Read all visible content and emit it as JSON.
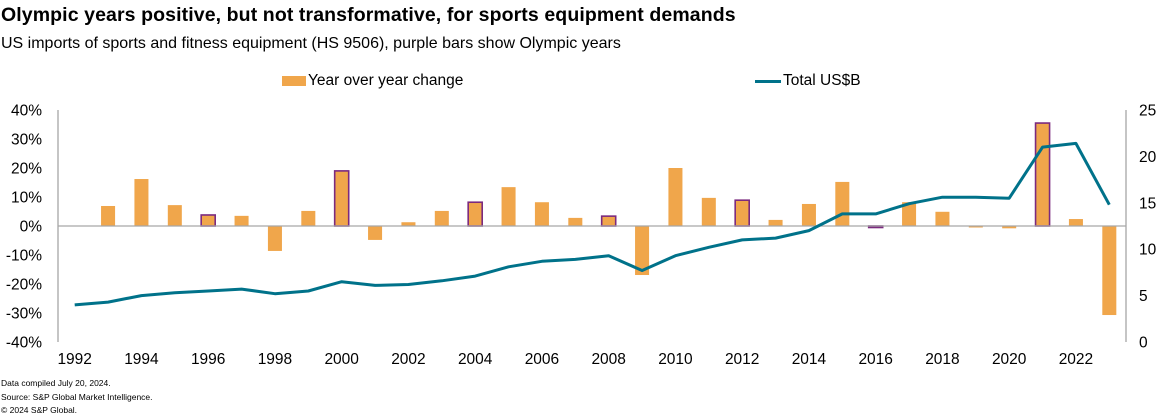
{
  "title": "Olympic years positive, but not transformative, for sports equipment demands",
  "subtitle": "US imports of sports and fitness equipment (HS 9506), purple bars show Olympic years",
  "footnotes": [
    "Data compiled July 20, 2024.",
    "Source: S&P Global Market Intelligence.",
    "© 2024 S&P Global."
  ],
  "colors": {
    "bar": "#f0a64b",
    "olympic_outline": "#7b2a7f",
    "line": "#00728a",
    "axis": "#a6a6a6"
  },
  "chart_data": {
    "type": "bar+line",
    "title": "Olympic years positive, but not transformative, for sports equipment demands",
    "subtitle": "US imports of sports and fitness equipment (HS 9506), purple bars show Olympic years",
    "x": [
      1992,
      1993,
      1994,
      1995,
      1996,
      1997,
      1998,
      1999,
      2000,
      2001,
      2002,
      2003,
      2004,
      2005,
      2006,
      2007,
      2008,
      2009,
      2010,
      2011,
      2012,
      2013,
      2014,
      2015,
      2016,
      2017,
      2018,
      2019,
      2020,
      2021,
      2022,
      2023
    ],
    "x_tick_labels": [
      "1992",
      "1994",
      "1996",
      "1998",
      "2000",
      "2002",
      "2004",
      "2006",
      "2008",
      "2010",
      "2012",
      "2014",
      "2016",
      "2018",
      "2020",
      "2022"
    ],
    "legend": {
      "placement": "top",
      "entries": [
        "Year over year change",
        "Total US$B"
      ]
    },
    "series": [
      {
        "name": "Year over year change",
        "type": "bar",
        "axis": "left",
        "unit": "%",
        "values": [
          null,
          6.9,
          16.2,
          7.2,
          3.8,
          3.5,
          -8.6,
          5.2,
          19.0,
          -4.8,
          1.3,
          5.2,
          8.2,
          13.4,
          8.2,
          2.8,
          3.4,
          -16.9,
          20.0,
          9.7,
          8.9,
          2.1,
          7.6,
          15.2,
          -0.3,
          8.2,
          4.9,
          -0.3,
          -0.8,
          35.5,
          2.4,
          -30.7
        ],
        "highlighted_olympic_years": [
          1996,
          2000,
          2004,
          2008,
          2012,
          2016,
          2021
        ]
      },
      {
        "name": "Total US$B",
        "type": "line",
        "axis": "right",
        "unit": "US$B",
        "values": [
          4.0,
          4.3,
          5.0,
          5.3,
          5.5,
          5.7,
          5.2,
          5.5,
          6.5,
          6.1,
          6.2,
          6.6,
          7.1,
          8.1,
          8.7,
          8.9,
          9.3,
          7.7,
          9.3,
          10.2,
          11.0,
          11.2,
          12.0,
          13.8,
          13.8,
          14.9,
          15.6,
          15.6,
          15.5,
          21.0,
          21.4,
          14.8
        ]
      }
    ],
    "y_left": {
      "label": "",
      "range": [
        -40,
        40
      ],
      "ticks": [
        40,
        30,
        20,
        10,
        0,
        -10,
        -20,
        -30,
        -40
      ],
      "tick_labels": [
        "40%",
        "30%",
        "20%",
        "10%",
        "0%",
        "-10%",
        "-20%",
        "-30%",
        "-40%"
      ]
    },
    "y_right": {
      "label": "",
      "range": [
        0,
        25
      ],
      "ticks": [
        25,
        20,
        15,
        10,
        5,
        0
      ],
      "tick_labels": [
        "25",
        "20",
        "15",
        "10",
        "5",
        "0"
      ]
    },
    "grid": false
  }
}
